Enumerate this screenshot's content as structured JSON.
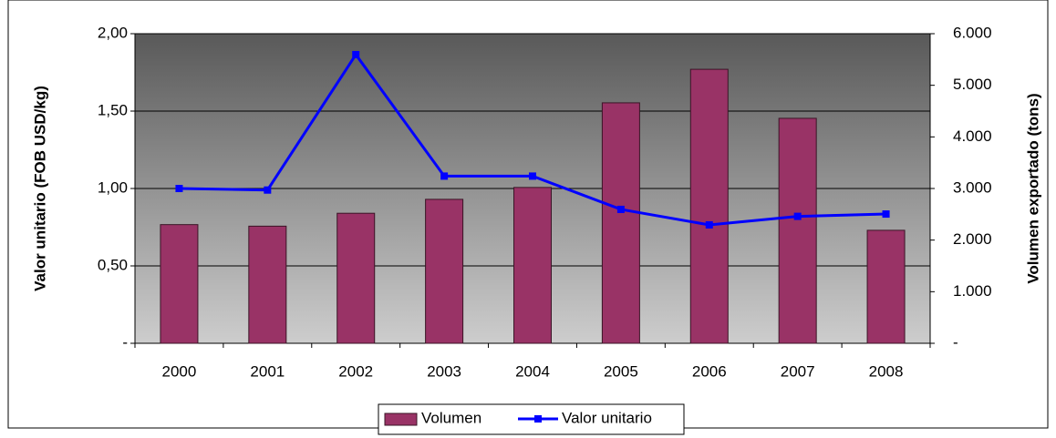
{
  "chart_data": {
    "type": "bar-line",
    "categories": [
      "2000",
      "2001",
      "2002",
      "2003",
      "2004",
      "2005",
      "2006",
      "2007",
      "2008"
    ],
    "ylabel": "Valor unitario (FOB USD/kg)",
    "y2label": "Volumen exportado (tons)",
    "ylim": [
      0,
      2
    ],
    "yticks": [
      {
        "value": 0,
        "label": "-"
      },
      {
        "value": 0.5,
        "label": "0,50"
      },
      {
        "value": 1,
        "label": "1,00"
      },
      {
        "value": 1.5,
        "label": "1,50"
      },
      {
        "value": 2,
        "label": "2,00"
      }
    ],
    "y2lim": [
      0,
      6000
    ],
    "y2ticks": [
      {
        "value": 0,
        "label": "-"
      },
      {
        "value": 1000,
        "label": "1.000"
      },
      {
        "value": 2000,
        "label": "2.000"
      },
      {
        "value": 3000,
        "label": "3.000"
      },
      {
        "value": 4000,
        "label": "4.000"
      },
      {
        "value": 5000,
        "label": "5.000"
      },
      {
        "value": 6000,
        "label": "6.000"
      }
    ],
    "grid": true,
    "legend": "bottom",
    "series": [
      {
        "name": "Volumen",
        "type": "bar",
        "axis": "y2",
        "color": "#993366",
        "values": [
          2300,
          2270,
          2520,
          2790,
          3020,
          4660,
          5310,
          4360,
          2190
        ]
      },
      {
        "name": "Valor unitario",
        "type": "line",
        "axis": "y",
        "color": "#0000ff",
        "values": [
          1.0,
          0.99,
          1.865,
          1.08,
          1.08,
          0.865,
          0.765,
          0.82,
          0.835
        ]
      }
    ]
  }
}
